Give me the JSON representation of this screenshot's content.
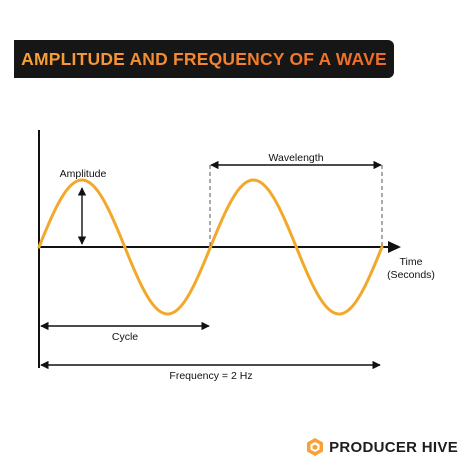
{
  "header": {
    "title": "AMPLITUDE AND FREQUENCY OF A WAVE"
  },
  "labels": {
    "amplitude": "Amplitude",
    "wavelength": "Wavelength",
    "time_line1": "Time",
    "time_line2": "(Seconds)",
    "cycle": "Cycle",
    "frequency": "Frequency = 2 Hz"
  },
  "brand": {
    "name": "PRODUCER HIVE",
    "icon": "producer-hive-logo-icon"
  },
  "colors": {
    "wave": "#f2a92b",
    "title_start": "#f7a13a",
    "title_end": "#ef6a28",
    "banner_bg": "#161616",
    "brand_icon": "#f5a23a"
  }
}
